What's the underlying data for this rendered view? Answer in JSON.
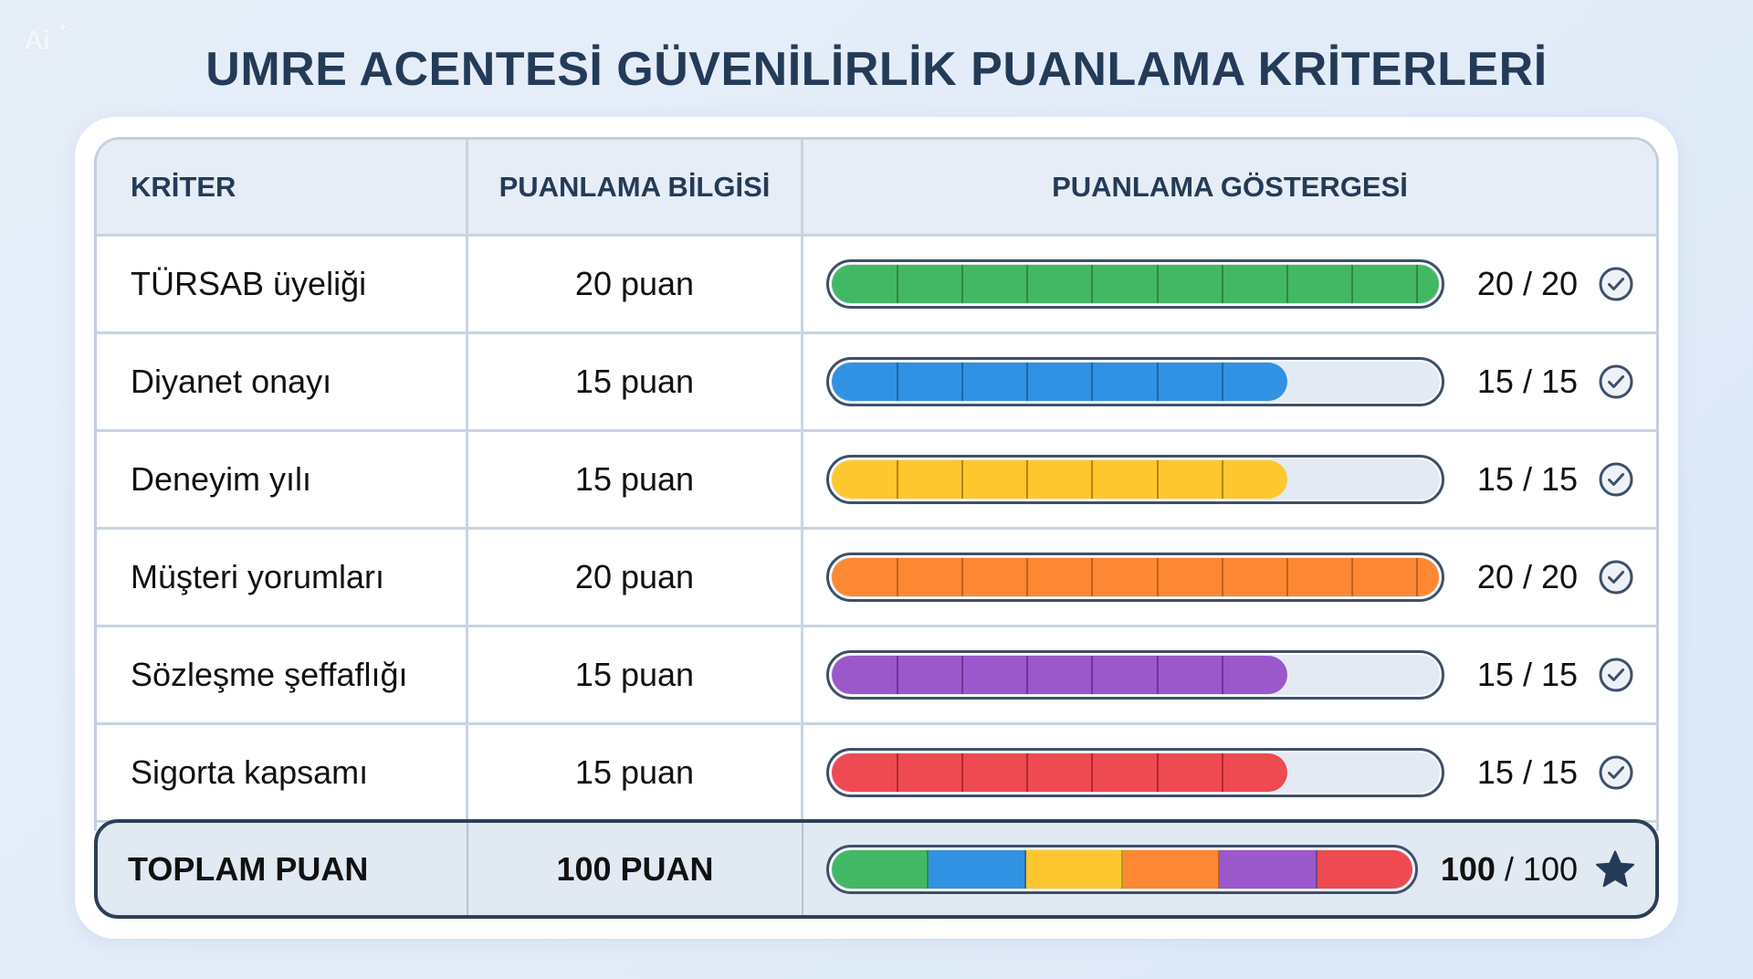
{
  "logo": {
    "text": "Ai",
    "spark": "✦"
  },
  "title": "UMRE ACENTESİ GÜVENİLİRLİK PUANLAMA KRİTERLERİ",
  "table": {
    "headers": [
      "KRİTER",
      "PUANLAMA BİLGİSİ",
      "PUANLAMA GÖSTERGESİ"
    ],
    "rows": [
      {
        "criterion": "TÜRSAB üyeliği",
        "points": "20 puan",
        "score": "20 / 20",
        "value": 20,
        "max": 20,
        "color": "#43b864",
        "line": "#2b7d44",
        "icon": "check-circle-icon"
      },
      {
        "criterion": "Diyanet onayı",
        "points": "15 puan",
        "score": "15 / 15",
        "value": 15,
        "max": 20,
        "color": "#3192e3",
        "line": "#1f5f99",
        "icon": "check-circle-icon"
      },
      {
        "criterion": "Deneyim yılı",
        "points": "15 puan",
        "score": "15 / 15",
        "value": 15,
        "max": 20,
        "color": "#fec72d",
        "line": "#a57b0f",
        "icon": "check-circle-icon"
      },
      {
        "criterion": "Müşteri yorumları",
        "points": "20 puan",
        "score": "20 / 20",
        "value": 20,
        "max": 20,
        "color": "#fd8833",
        "line": "#b85a18",
        "icon": "check-circle-icon"
      },
      {
        "criterion": "Sözleşme şeffaflığı",
        "points": "15 puan",
        "score": "15 / 15",
        "value": 15,
        "max": 20,
        "color": "#9b58cb",
        "line": "#64308d",
        "icon": "check-circle-icon"
      },
      {
        "criterion": "Sigorta kapsamı",
        "points": "15 puan",
        "score": "15 / 15",
        "value": 15,
        "max": 20,
        "color": "#ee4a52",
        "line": "#a82128",
        "icon": "check-circle-icon"
      }
    ],
    "total": {
      "label": "TOPLAM PUAN",
      "points": "100 PUAN",
      "score_bold": "100",
      "score_rest": " / 100",
      "icon": "star-icon",
      "segments": [
        "#43b864",
        "#3192e3",
        "#fec72d",
        "#fd8833",
        "#9b58cb",
        "#ee4a52"
      ]
    }
  },
  "colors": {
    "title": "#243b57",
    "header_bg": "#e6edf6",
    "border": "#c9d4e1",
    "bar_outline": "#3d5068",
    "bar_track": "#e3eaf3",
    "total_border": "#2d3f55"
  }
}
